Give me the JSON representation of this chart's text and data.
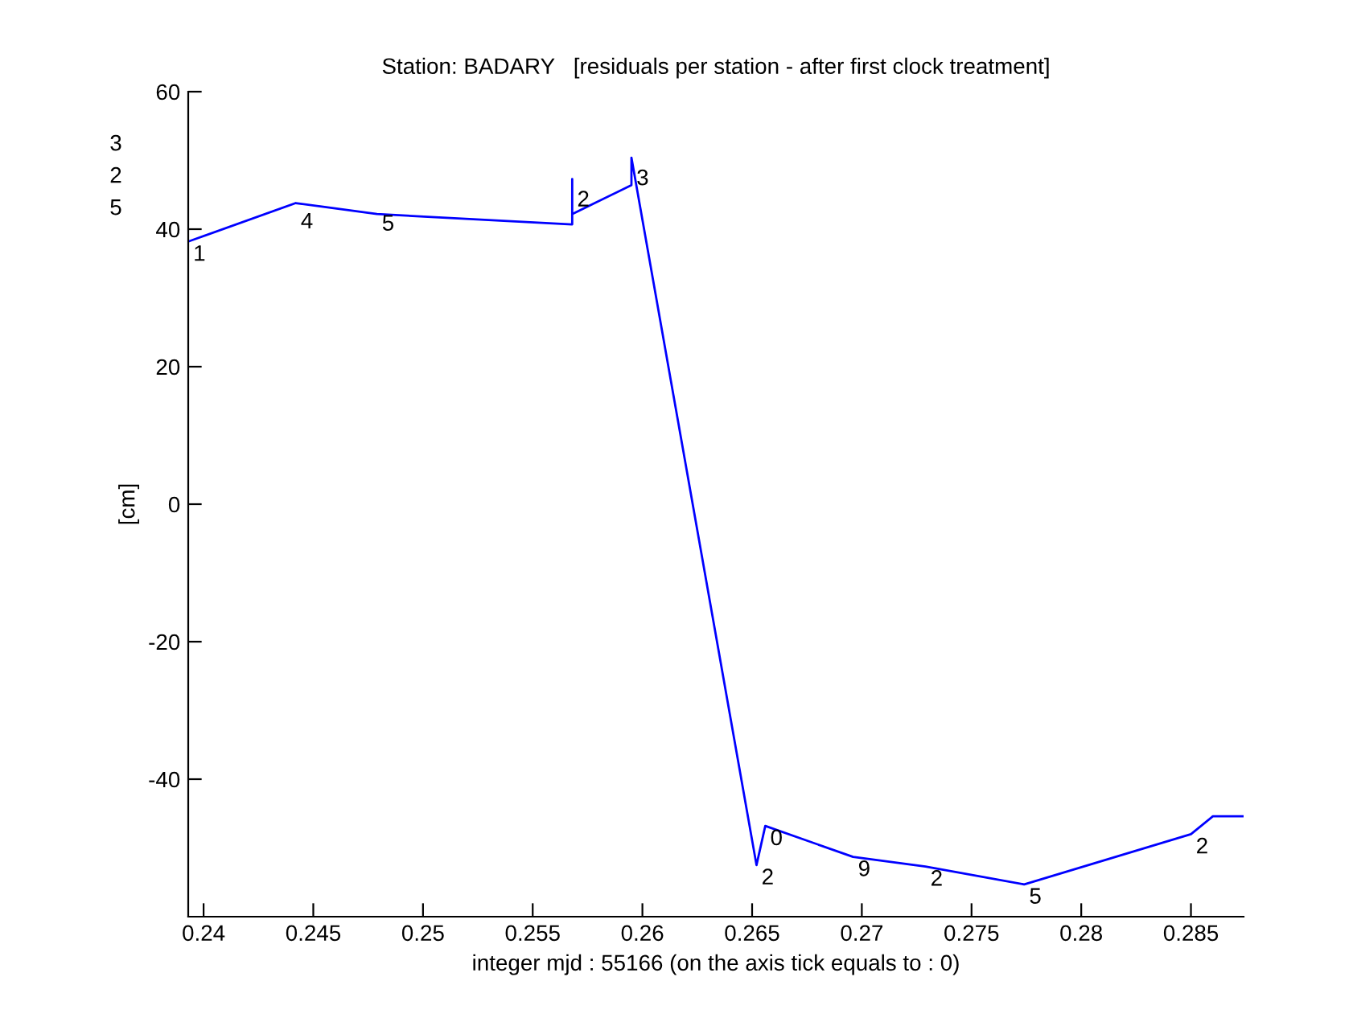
{
  "chart_data": {
    "type": "line",
    "title": "Station: BADARY   [residuals per station - after first clock treatment]",
    "xlabel": "integer mjd : 55166 (on the axis tick equals to : 0)",
    "ylabel": "[cm]",
    "x": [
      0.2393,
      0.2442,
      0.2479,
      0.2568,
      0.2568,
      0.2568,
      0.2595,
      0.2595,
      0.2652,
      0.2656,
      0.2696,
      0.2729,
      0.2774,
      0.285,
      0.286,
      0.2874
    ],
    "series": [
      {
        "color": "#0000ff",
        "values": [
          38.2,
          43.8,
          42.2,
          40.7,
          47.3,
          42.2,
          46.4,
          50.4,
          -52.5,
          -46.8,
          -51.3,
          -52.7,
          -55.3,
          -48.0,
          -45.4,
          -45.4
        ]
      }
    ],
    "annotations": [
      "3",
      "2",
      "5",
      {
        "text": "1",
        "x": 0.2393,
        "y": 38.2
      },
      {
        "text": "4",
        "x": 0.2442,
        "y": 42.9
      },
      {
        "text": "5",
        "x": 0.2479,
        "y": 42.6
      },
      {
        "text": "2",
        "x": 0.2568,
        "y": 46.1
      },
      {
        "text": "3",
        "x": 0.2595,
        "y": 49.2
      },
      {
        "text": "0",
        "x": 0.2656,
        "y": -46.8
      },
      {
        "text": "2",
        "x": 0.2652,
        "y": -52.5
      },
      {
        "text": "9",
        "x": 0.2696,
        "y": -51.3
      },
      {
        "text": "2",
        "x": 0.2729,
        "y": -52.7
      },
      {
        "text": "5",
        "x": 0.2774,
        "y": -55.3
      },
      {
        "text": "2",
        "x": 0.285,
        "y": -48.0
      }
    ],
    "xlim": [
      0.2393,
      0.2874
    ],
    "ylim": [
      -60,
      60
    ],
    "xticks": [
      0.24,
      0.245,
      0.25,
      0.255,
      0.26,
      0.265,
      0.27,
      0.275,
      0.28,
      0.285
    ],
    "yticks": [
      -40,
      -20,
      0,
      20,
      40,
      60
    ],
    "grid": false,
    "legend": false,
    "marker": "none",
    "line_style": "solid"
  }
}
